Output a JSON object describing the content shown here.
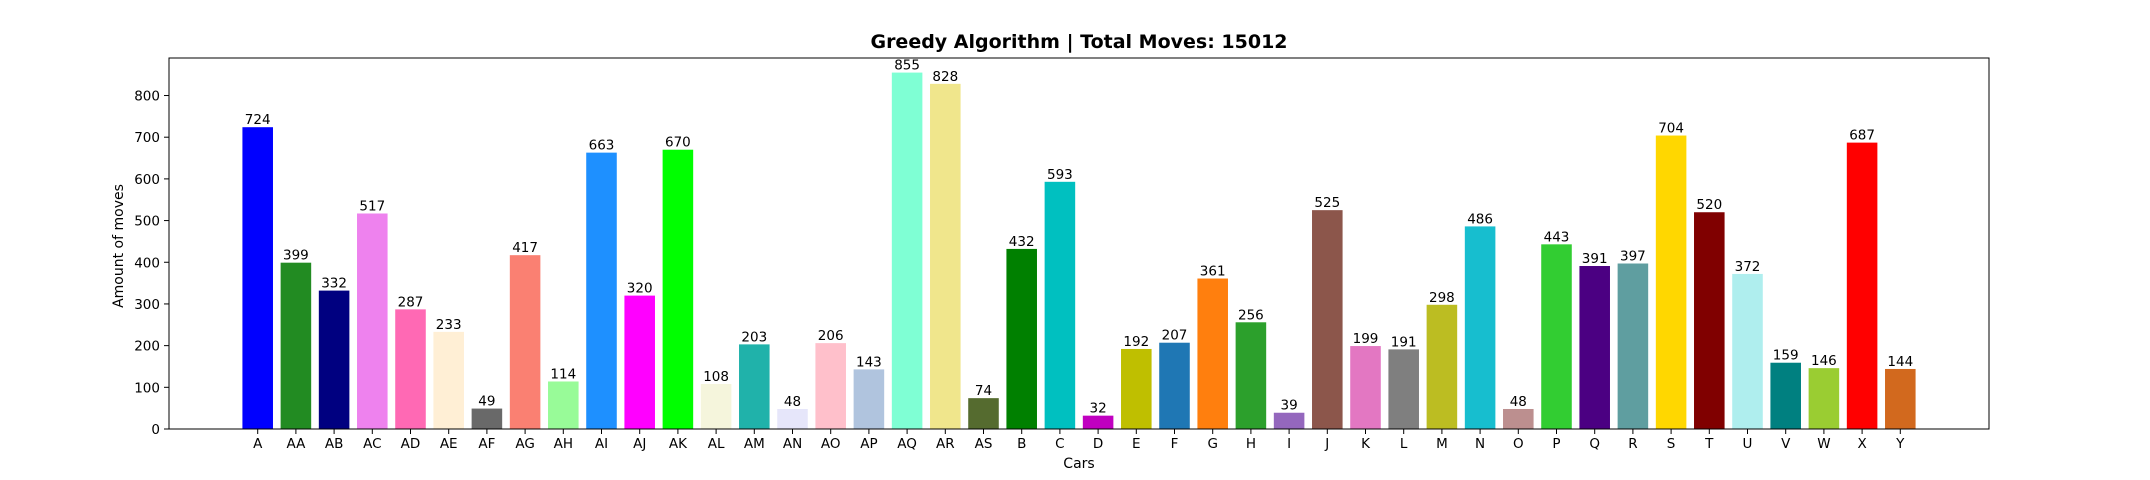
{
  "chart_data": {
    "type": "bar",
    "title": "Greedy Algorithm | Total Moves: 15012",
    "xlabel": "Cars",
    "ylabel": "Amount of moves",
    "ylim": [
      0,
      890
    ],
    "yticks": [
      0,
      100,
      200,
      300,
      400,
      500,
      600,
      700,
      800
    ],
    "grid": false,
    "categories": [
      "A",
      "AA",
      "AB",
      "AC",
      "AD",
      "AE",
      "AF",
      "AG",
      "AH",
      "AI",
      "AJ",
      "AK",
      "AL",
      "AM",
      "AN",
      "AO",
      "AP",
      "AQ",
      "AR",
      "AS",
      "B",
      "C",
      "D",
      "E",
      "F",
      "G",
      "H",
      "I",
      "J",
      "K",
      "L",
      "M",
      "N",
      "O",
      "P",
      "Q",
      "R",
      "S",
      "T",
      "U",
      "V",
      "W",
      "X",
      "Y"
    ],
    "values": [
      724,
      399,
      332,
      517,
      287,
      233,
      49,
      417,
      114,
      663,
      320,
      670,
      108,
      203,
      48,
      206,
      143,
      855,
      828,
      74,
      432,
      593,
      32,
      192,
      207,
      361,
      256,
      39,
      525,
      199,
      191,
      298,
      486,
      48,
      443,
      391,
      397,
      704,
      520,
      372,
      159,
      146,
      687,
      144
    ],
    "colors": [
      "#0000ff",
      "#228b22",
      "#000080",
      "#ee82ee",
      "#ff69b4",
      "#ffefd5",
      "#696969",
      "#fa8072",
      "#98fb98",
      "#1e90ff",
      "#ff00ff",
      "#00ff00",
      "#f5f5dc",
      "#20b2aa",
      "#e6e6fa",
      "#ffc0cb",
      "#b0c4de",
      "#7fffd4",
      "#f0e68c",
      "#556b2f",
      "#008000",
      "#00c0c0",
      "#c000c0",
      "#bfbf00",
      "#1f77b4",
      "#ff7f0e",
      "#2ca02c",
      "#9467bd",
      "#8c564b",
      "#e377c2",
      "#7f7f7f",
      "#bcbd22",
      "#17becf",
      "#bc8f8f",
      "#32cd32",
      "#4b0082",
      "#5f9ea0",
      "#ffd700",
      "#800000",
      "#afeeee",
      "#008080",
      "#9acd32",
      "#ff0000",
      "#d2691e"
    ]
  }
}
